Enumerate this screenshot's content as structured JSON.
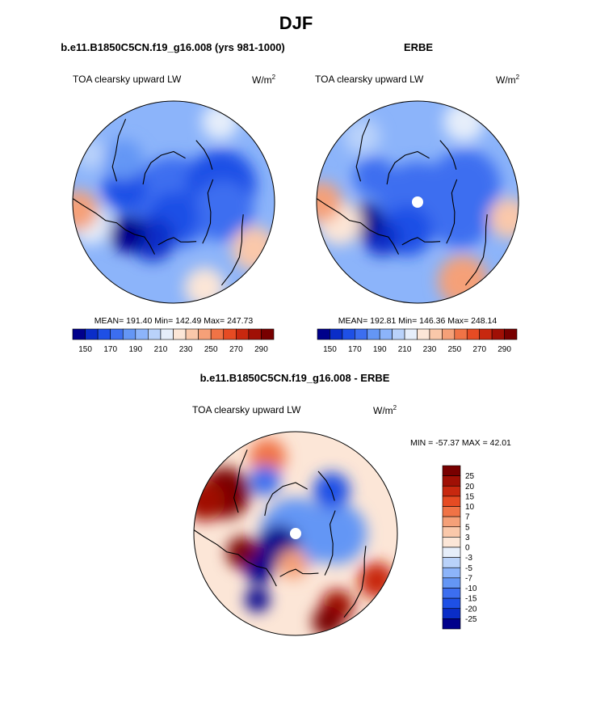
{
  "figure": {
    "title": "DJF"
  },
  "chart_data": [
    {
      "type": "heatmap",
      "projection": "north-polar-stereographic",
      "title": "b.e11.B1850C5CN.f19_g16.008 (yrs 981-1000)",
      "subtitle": "TOA clearsky upward LW",
      "units": {
        "base": "W/m",
        "exponent": "2"
      },
      "stats": "MEAN= 191.40  Min= 142.49  Max= 247.73",
      "mean": 191.4,
      "min": 142.49,
      "max": 247.73,
      "colorbar": {
        "orientation": "horizontal",
        "levels": [
          150,
          160,
          170,
          180,
          190,
          200,
          210,
          220,
          230,
          240,
          250,
          260,
          270,
          280,
          290
        ],
        "tick_labels": [
          "150",
          "170",
          "190",
          "210",
          "230",
          "250",
          "270",
          "290"
        ],
        "colors": [
          "#00008b",
          "#0a2dc8",
          "#1e50e6",
          "#3c6ef0",
          "#6496f5",
          "#8cb4fa",
          "#b9d2fa",
          "#e6eefa",
          "#fce6d7",
          "#fac8aa",
          "#f5a078",
          "#f07346",
          "#e64b23",
          "#c8280f",
          "#a01005",
          "#780000"
        ]
      },
      "field_blobs": [
        {
          "lon": 0,
          "rfrac": 0.0,
          "size": 0.45,
          "value": 170
        },
        {
          "lon": 70,
          "rfrac": 0.5,
          "size": 0.35,
          "value": 165
        },
        {
          "lon": 100,
          "rfrac": 0.5,
          "size": 0.3,
          "value": 170
        },
        {
          "lon": 180,
          "rfrac": 0.15,
          "size": 0.25,
          "value": 160
        },
        {
          "lon": 210,
          "rfrac": 0.42,
          "size": 0.22,
          "value": 150
        },
        {
          "lon": 235,
          "rfrac": 0.55,
          "size": 0.18,
          "value": 147
        },
        {
          "lon": 285,
          "rfrac": 0.5,
          "size": 0.22,
          "value": 165
        },
        {
          "lon": 310,
          "rfrac": 0.65,
          "size": 0.2,
          "value": 180
        },
        {
          "lon": 120,
          "rfrac": 0.92,
          "size": 0.22,
          "value": 235
        },
        {
          "lon": 160,
          "rfrac": 0.9,
          "size": 0.2,
          "value": 225
        },
        {
          "lon": 30,
          "rfrac": 0.92,
          "size": 0.18,
          "value": 210
        },
        {
          "lon": 255,
          "rfrac": 0.85,
          "size": 0.2,
          "value": 215
        },
        {
          "lon": 265,
          "rfrac": 0.95,
          "size": 0.2,
          "value": 245
        },
        {
          "lon": 300,
          "rfrac": 0.95,
          "size": 0.15,
          "value": 200
        }
      ]
    },
    {
      "type": "heatmap",
      "projection": "north-polar-stereographic",
      "title": "ERBE",
      "subtitle": "TOA clearsky upward LW",
      "units": {
        "base": "W/m",
        "exponent": "2"
      },
      "stats": "MEAN= 192.81  Min= 146.36  Max= 248.14",
      "mean": 192.81,
      "min": 146.36,
      "max": 248.14,
      "missing_pole": true,
      "colorbar": {
        "orientation": "horizontal",
        "levels": [
          150,
          160,
          170,
          180,
          190,
          200,
          210,
          220,
          230,
          240,
          250,
          260,
          270,
          280,
          290
        ],
        "tick_labels": [
          "150",
          "170",
          "190",
          "210",
          "230",
          "250",
          "270",
          "290"
        ],
        "colors": [
          "#00008b",
          "#0a2dc8",
          "#1e50e6",
          "#3c6ef0",
          "#6496f5",
          "#8cb4fa",
          "#b9d2fa",
          "#e6eefa",
          "#fce6d7",
          "#fac8aa",
          "#f5a078",
          "#f07346",
          "#e64b23",
          "#c8280f",
          "#a01005",
          "#780000"
        ]
      },
      "field_blobs": [
        {
          "lon": 0,
          "rfrac": 0.0,
          "size": 0.4,
          "value": 170
        },
        {
          "lon": 70,
          "rfrac": 0.5,
          "size": 0.35,
          "value": 170
        },
        {
          "lon": 110,
          "rfrac": 0.45,
          "size": 0.3,
          "value": 175
        },
        {
          "lon": 200,
          "rfrac": 0.3,
          "size": 0.25,
          "value": 160
        },
        {
          "lon": 225,
          "rfrac": 0.5,
          "size": 0.18,
          "value": 152
        },
        {
          "lon": 250,
          "rfrac": 0.55,
          "size": 0.18,
          "value": 148
        },
        {
          "lon": 300,
          "rfrac": 0.5,
          "size": 0.2,
          "value": 175
        },
        {
          "lon": 150,
          "rfrac": 0.9,
          "size": 0.25,
          "value": 240
        },
        {
          "lon": 100,
          "rfrac": 0.92,
          "size": 0.2,
          "value": 235
        },
        {
          "lon": 30,
          "rfrac": 0.92,
          "size": 0.2,
          "value": 215
        },
        {
          "lon": 255,
          "rfrac": 0.8,
          "size": 0.22,
          "value": 225
        },
        {
          "lon": 270,
          "rfrac": 0.95,
          "size": 0.2,
          "value": 245
        },
        {
          "lon": 320,
          "rfrac": 0.85,
          "size": 0.18,
          "value": 205
        }
      ]
    },
    {
      "type": "heatmap",
      "projection": "north-polar-stereographic",
      "title": "b.e11.B1850C5CN.f19_g16.008 - ERBE",
      "subtitle": "TOA clearsky upward LW",
      "units": {
        "base": "W/m",
        "exponent": "2"
      },
      "stats": "MIN = -57.37 MAX =  42.01",
      "min": -57.37,
      "max": 42.01,
      "missing_pole": true,
      "colorbar": {
        "orientation": "vertical",
        "levels": [
          -25,
          -20,
          -15,
          -10,
          -7,
          -5,
          -3,
          0,
          3,
          5,
          7,
          10,
          15,
          20,
          25
        ],
        "tick_labels": [
          "25",
          "20",
          "15",
          "10",
          "7",
          "5",
          "3",
          "0",
          "-3",
          "-5",
          "-7",
          "-10",
          "-15",
          "-20",
          "-25"
        ],
        "colors": [
          "#00008b",
          "#0a2dc8",
          "#1e50e6",
          "#3c6ef0",
          "#6496f5",
          "#8cb4fa",
          "#b9d2fa",
          "#e6eefa",
          "#fce6d7",
          "#fac8aa",
          "#f5a078",
          "#f07346",
          "#e64b23",
          "#c8280f",
          "#a01005",
          "#780000"
        ]
      },
      "field_blobs": [
        {
          "lon": 0,
          "rfrac": 0.0,
          "size": 0.35,
          "value": -8
        },
        {
          "lon": 90,
          "rfrac": 0.4,
          "size": 0.3,
          "value": -8
        },
        {
          "lon": 40,
          "rfrac": 0.55,
          "size": 0.18,
          "value": -20
        },
        {
          "lon": 210,
          "rfrac": 0.75,
          "size": 0.12,
          "value": -40
        },
        {
          "lon": 235,
          "rfrac": 0.2,
          "size": 0.2,
          "value": -30
        },
        {
          "lon": 250,
          "rfrac": 0.55,
          "size": 0.16,
          "value": 25
        },
        {
          "lon": 225,
          "rfrac": 0.5,
          "size": 0.14,
          "value": -30
        },
        {
          "lon": 120,
          "rfrac": 0.92,
          "size": 0.18,
          "value": 18
        },
        {
          "lon": 150,
          "rfrac": 0.82,
          "size": 0.16,
          "value": 22
        },
        {
          "lon": 160,
          "rfrac": 0.92,
          "size": 0.15,
          "value": 30
        },
        {
          "lon": 300,
          "rfrac": 0.8,
          "size": 0.25,
          "value": 35
        },
        {
          "lon": 290,
          "rfrac": 0.95,
          "size": 0.2,
          "value": 20
        },
        {
          "lon": 340,
          "rfrac": 0.8,
          "size": 0.18,
          "value": 8
        },
        {
          "lon": 330,
          "rfrac": 0.6,
          "size": 0.15,
          "value": -12
        },
        {
          "lon": 185,
          "rfrac": 0.3,
          "size": 0.15,
          "value": 6
        }
      ]
    }
  ]
}
